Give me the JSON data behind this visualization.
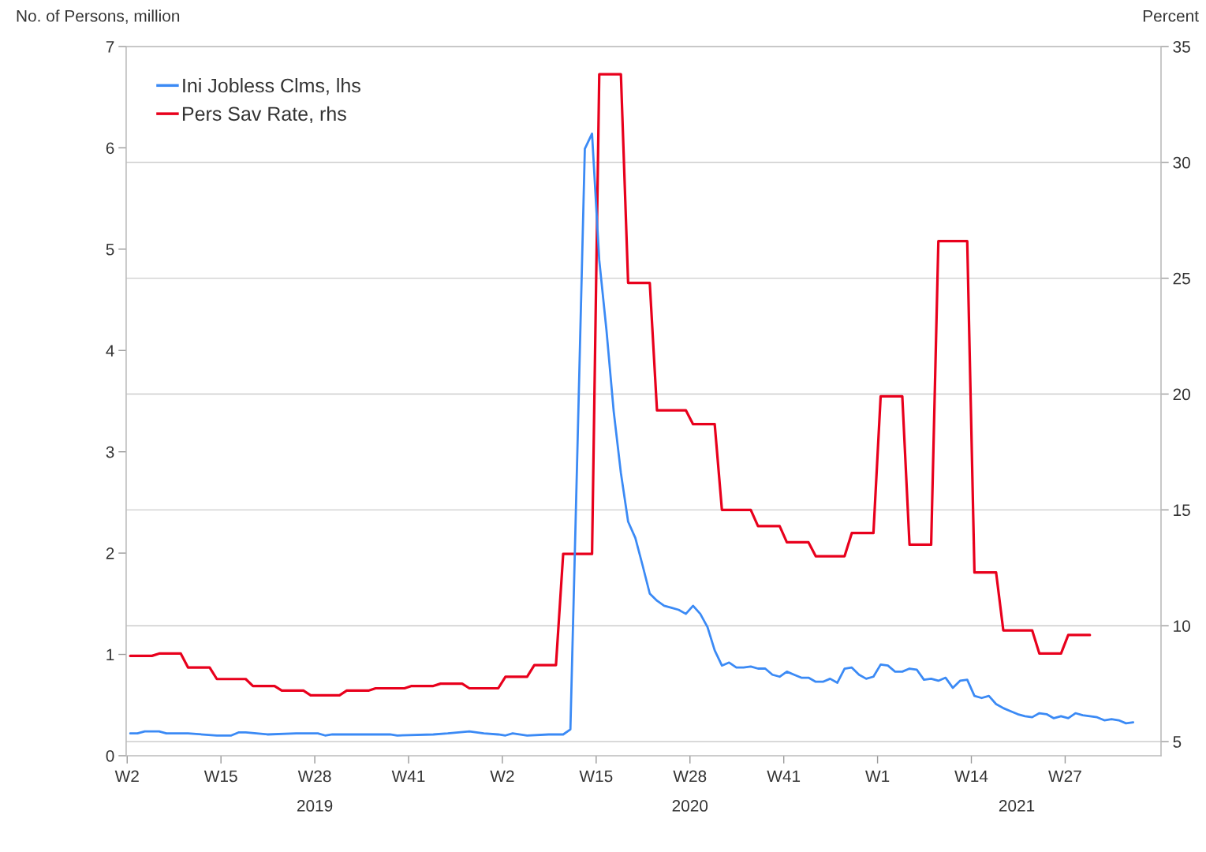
{
  "chart_data": {
    "type": "line",
    "ylabel": "No. of Persons, million",
    "y2label": "Percent",
    "xlim": [
      "2019-01-06",
      "2021-10-06"
    ],
    "xticks": [
      {
        "value": "2019-01-07",
        "label": "W2"
      },
      {
        "value": "2019-04-08",
        "label": "W15"
      },
      {
        "value": "2019-07-08",
        "label": "W28"
      },
      {
        "value": "2019-10-07",
        "label": "W41"
      },
      {
        "value": "2020-01-06",
        "label": "W2"
      },
      {
        "value": "2020-04-06",
        "label": "W15"
      },
      {
        "value": "2020-07-06",
        "label": "W28"
      },
      {
        "value": "2020-10-05",
        "label": "W41"
      },
      {
        "value": "2021-01-04",
        "label": "W1"
      },
      {
        "value": "2021-04-05",
        "label": "W14"
      },
      {
        "value": "2021-07-05",
        "label": "W27"
      }
    ],
    "x2lim": [
      "2019-01-06",
      "2021-10-06"
    ],
    "x2ticks": [
      {
        "value": "2019-07-08",
        "label": "2019"
      },
      {
        "value": "2020-07-06",
        "label": "2020"
      },
      {
        "value": "2021-05-19",
        "label": "2021"
      }
    ],
    "ylim": [
      0,
      7
    ],
    "yticks": [
      0,
      1,
      2,
      3,
      4,
      5,
      6,
      7
    ],
    "y2lim": [
      4.39,
      35
    ],
    "y2ticks": [
      5,
      10,
      15,
      20,
      25,
      30,
      35
    ],
    "grid": "y",
    "legend": "top left",
    "line_style": "solid",
    "series": [
      {
        "name": "Ini Jobless Clms, lhs",
        "color": "#3b8af5",
        "axis": "y",
        "x": [
          "2019-01-10",
          "2019-01-17",
          "2019-01-24",
          "2019-02-07",
          "2019-02-14",
          "2019-03-07",
          "2019-04-04",
          "2019-04-18",
          "2019-04-25",
          "2019-05-02",
          "2019-05-23",
          "2019-06-20",
          "2019-07-11",
          "2019-07-18",
          "2019-07-25",
          "2019-08-15",
          "2019-09-19",
          "2019-09-26",
          "2019-10-31",
          "2019-11-14",
          "2019-12-05",
          "2019-12-19",
          "2020-01-02",
          "2020-01-09",
          "2020-01-16",
          "2020-01-30",
          "2020-02-20",
          "2020-03-05",
          "2020-03-12",
          "2020-03-19",
          "2020-03-26",
          "2020-04-02",
          "2020-04-09",
          "2020-04-16",
          "2020-04-23",
          "2020-04-30",
          "2020-05-07",
          "2020-05-14",
          "2020-05-21",
          "2020-05-28",
          "2020-06-04",
          "2020-06-11",
          "2020-06-18",
          "2020-06-25",
          "2020-07-02",
          "2020-07-09",
          "2020-07-16",
          "2020-07-23",
          "2020-07-30",
          "2020-08-06",
          "2020-08-13",
          "2020-08-20",
          "2020-08-27",
          "2020-09-03",
          "2020-09-10",
          "2020-09-17",
          "2020-09-24",
          "2020-10-01",
          "2020-10-08",
          "2020-10-15",
          "2020-10-22",
          "2020-10-29",
          "2020-11-05",
          "2020-11-12",
          "2020-11-19",
          "2020-11-26",
          "2020-12-03",
          "2020-12-10",
          "2020-12-17",
          "2020-12-24",
          "2020-12-31",
          "2021-01-07",
          "2021-01-14",
          "2021-01-21",
          "2021-01-28",
          "2021-02-04",
          "2021-02-11",
          "2021-02-18",
          "2021-02-25",
          "2021-03-04",
          "2021-03-11",
          "2021-03-18",
          "2021-03-25",
          "2021-04-01",
          "2021-04-08",
          "2021-04-15",
          "2021-04-22",
          "2021-04-29",
          "2021-05-06",
          "2021-05-13",
          "2021-05-20",
          "2021-05-27",
          "2021-06-03",
          "2021-06-10",
          "2021-06-17",
          "2021-06-24",
          "2021-07-01",
          "2021-07-08",
          "2021-07-15",
          "2021-07-22",
          "2021-07-29",
          "2021-08-05",
          "2021-08-12",
          "2021-08-19",
          "2021-08-26",
          "2021-09-02",
          "2021-09-09"
        ],
        "values": [
          0.22,
          0.22,
          0.24,
          0.24,
          0.22,
          0.22,
          0.2,
          0.2,
          0.23,
          0.23,
          0.21,
          0.22,
          0.22,
          0.2,
          0.21,
          0.21,
          0.21,
          0.2,
          0.21,
          0.22,
          0.24,
          0.22,
          0.21,
          0.2,
          0.22,
          0.2,
          0.21,
          0.21,
          0.26,
          3.1,
          5.99,
          6.14,
          4.89,
          4.2,
          3.4,
          2.79,
          2.31,
          2.15,
          1.88,
          1.6,
          1.53,
          1.48,
          1.46,
          1.44,
          1.4,
          1.48,
          1.4,
          1.27,
          1.04,
          0.89,
          0.92,
          0.87,
          0.87,
          0.88,
          0.86,
          0.86,
          0.8,
          0.78,
          0.83,
          0.8,
          0.77,
          0.77,
          0.73,
          0.73,
          0.76,
          0.72,
          0.86,
          0.87,
          0.8,
          0.76,
          0.78,
          0.9,
          0.89,
          0.83,
          0.83,
          0.86,
          0.85,
          0.75,
          0.76,
          0.74,
          0.77,
          0.67,
          0.74,
          0.75,
          0.59,
          0.57,
          0.59,
          0.51,
          0.47,
          0.44,
          0.41,
          0.39,
          0.38,
          0.42,
          0.41,
          0.37,
          0.39,
          0.37,
          0.42,
          0.4,
          0.39,
          0.38,
          0.35,
          0.36,
          0.35,
          0.32,
          0.33
        ]
      },
      {
        "name": "Pers Sav Rate, rhs",
        "color": "#e8001c",
        "axis": "y2",
        "x": [
          "2019-01-10",
          "2019-01-31",
          "2019-02-07",
          "2019-02-28",
          "2019-03-07",
          "2019-03-28",
          "2019-04-04",
          "2019-05-02",
          "2019-05-09",
          "2019-05-30",
          "2019-06-06",
          "2019-06-27",
          "2019-07-04",
          "2019-08-01",
          "2019-08-08",
          "2019-08-29",
          "2019-09-05",
          "2019-10-03",
          "2019-10-10",
          "2019-10-31",
          "2019-11-07",
          "2019-11-28",
          "2019-12-05",
          "2020-01-02",
          "2020-01-09",
          "2020-01-30",
          "2020-02-06",
          "2020-02-27",
          "2020-03-05",
          "2020-04-02",
          "2020-04-09",
          "2020-04-30",
          "2020-05-07",
          "2020-05-28",
          "2020-06-04",
          "2020-07-02",
          "2020-07-09",
          "2020-07-30",
          "2020-08-06",
          "2020-09-03",
          "2020-09-10",
          "2020-10-01",
          "2020-10-08",
          "2020-10-29",
          "2020-11-05",
          "2020-12-03",
          "2020-12-10",
          "2020-12-31",
          "2021-01-07",
          "2021-01-28",
          "2021-02-04",
          "2021-02-25",
          "2021-03-04",
          "2021-04-01",
          "2021-04-08",
          "2021-04-29",
          "2021-05-06",
          "2021-06-03",
          "2021-06-10",
          "2021-07-01",
          "2021-07-08",
          "2021-07-29"
        ],
        "values": [
          8.7,
          8.7,
          8.8,
          8.8,
          8.2,
          8.2,
          7.7,
          7.7,
          7.4,
          7.4,
          7.2,
          7.2,
          7.0,
          7.0,
          7.2,
          7.2,
          7.3,
          7.3,
          7.4,
          7.4,
          7.5,
          7.5,
          7.3,
          7.3,
          7.8,
          7.8,
          8.3,
          8.3,
          13.1,
          13.1,
          33.8,
          33.8,
          24.8,
          24.8,
          19.3,
          19.3,
          18.7,
          18.7,
          15.0,
          15.0,
          14.3,
          14.3,
          13.6,
          13.6,
          13.0,
          13.0,
          14.0,
          14.0,
          19.9,
          19.9,
          13.5,
          13.5,
          26.6,
          26.6,
          12.3,
          12.3,
          9.8,
          9.8,
          8.8,
          8.8,
          9.6,
          9.6
        ]
      }
    ]
  }
}
